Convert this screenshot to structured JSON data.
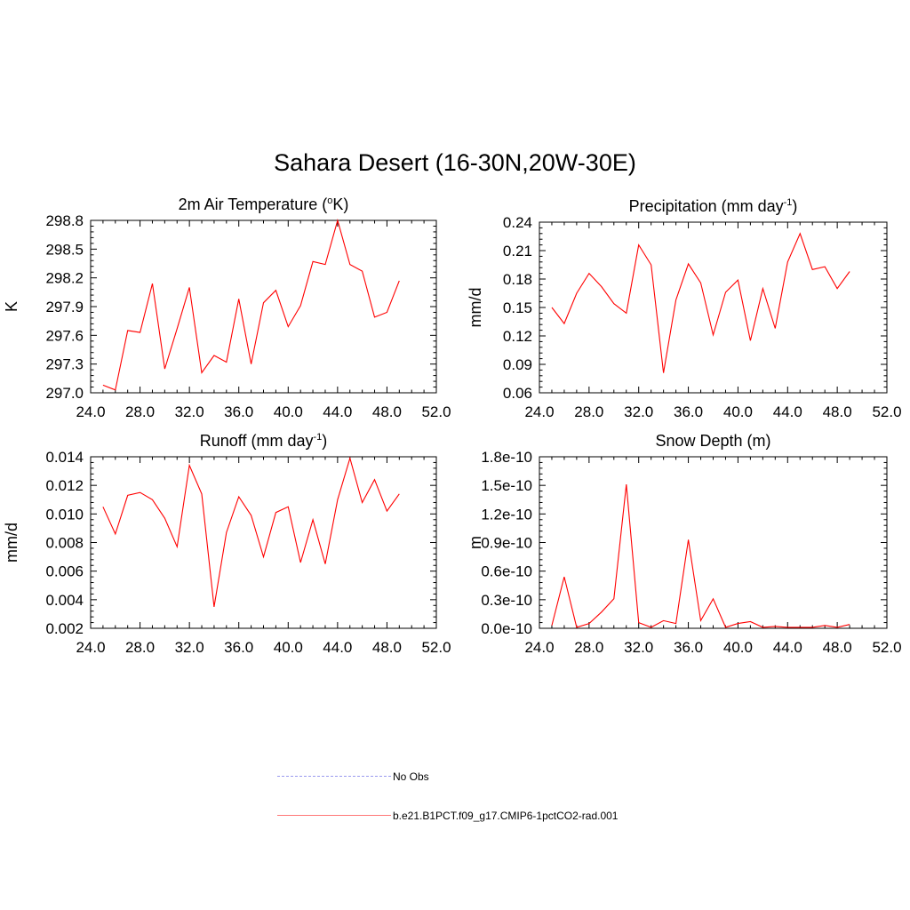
{
  "title": "Sahara Desert (16-30N,20W-30E)",
  "legend": [
    {
      "label": "No Obs",
      "color": "#9999ee",
      "dash": true
    },
    {
      "label": "b.e21.B1PCT.f09_g17.CMIP6-1pctCO2-rad.001",
      "color": "#ff5555",
      "dash": false
    }
  ],
  "chart_data": [
    {
      "type": "line",
      "title": "2m Air Temperature (°K)",
      "title_parts": [
        "2m Air Temperature (",
        "o",
        "K)"
      ],
      "ylabel": "K",
      "xlim": [
        24,
        52
      ],
      "ylim": [
        297.0,
        298.8
      ],
      "xticks": [
        "24.0",
        "28.0",
        "32.0",
        "36.0",
        "40.0",
        "44.0",
        "48.0",
        "52.0"
      ],
      "yticks": [
        "297.0",
        "297.3",
        "297.6",
        "297.9",
        "298.2",
        "298.5",
        "298.8"
      ],
      "series": [
        {
          "color": "#ff0000",
          "x": [
            25,
            26,
            27,
            28,
            29,
            30,
            31,
            32,
            33,
            34,
            35,
            36,
            37,
            38,
            39,
            40,
            41,
            42,
            43,
            44,
            45,
            46,
            47,
            48,
            49
          ],
          "y": [
            297.08,
            297.03,
            297.65,
            297.63,
            298.14,
            297.25,
            297.67,
            298.1,
            297.21,
            297.39,
            297.32,
            297.98,
            297.3,
            297.94,
            298.07,
            297.69,
            297.91,
            298.37,
            298.34,
            298.8,
            298.34,
            298.27,
            297.79,
            297.84,
            298.17
          ]
        }
      ]
    },
    {
      "type": "line",
      "title": "Precipitation (mm day-1)",
      "title_parts": [
        "Precipitation (mm day",
        "-1",
        ")"
      ],
      "ylabel": "mm/d",
      "xlim": [
        24,
        52
      ],
      "ylim": [
        0.06,
        0.24
      ],
      "xticks": [
        "24.0",
        "28.0",
        "32.0",
        "36.0",
        "40.0",
        "44.0",
        "48.0",
        "52.0"
      ],
      "yticks": [
        "0.06",
        "0.09",
        "0.12",
        "0.15",
        "0.18",
        "0.21",
        "0.24"
      ],
      "series": [
        {
          "color": "#ff0000",
          "x": [
            25,
            26,
            27,
            28,
            29,
            30,
            31,
            32,
            33,
            34,
            35,
            36,
            37,
            38,
            39,
            40,
            41,
            42,
            43,
            44,
            45,
            46,
            47,
            48,
            49
          ],
          "y": [
            0.15,
            0.133,
            0.165,
            0.186,
            0.172,
            0.154,
            0.144,
            0.216,
            0.195,
            0.081,
            0.158,
            0.196,
            0.176,
            0.121,
            0.166,
            0.179,
            0.115,
            0.17,
            0.128,
            0.198,
            0.228,
            0.19,
            0.193,
            0.17,
            0.188
          ]
        }
      ]
    },
    {
      "type": "line",
      "title": "Runoff (mm day-1)",
      "title_parts": [
        "Runoff (mm day",
        "-1",
        ")"
      ],
      "ylabel": "mm/d",
      "xlim": [
        24,
        52
      ],
      "ylim": [
        0.002,
        0.014
      ],
      "xticks": [
        "24.0",
        "28.0",
        "32.0",
        "36.0",
        "40.0",
        "44.0",
        "48.0",
        "52.0"
      ],
      "yticks": [
        "0.002",
        "0.004",
        "0.006",
        "0.008",
        "0.010",
        "0.012",
        "0.014"
      ],
      "series": [
        {
          "color": "#ff0000",
          "x": [
            25,
            26,
            27,
            28,
            29,
            30,
            31,
            32,
            33,
            34,
            35,
            36,
            37,
            38,
            39,
            40,
            41,
            42,
            43,
            44,
            45,
            46,
            47,
            48,
            49
          ],
          "y": [
            0.0105,
            0.0086,
            0.0113,
            0.0115,
            0.011,
            0.0097,
            0.0077,
            0.0134,
            0.0114,
            0.0035,
            0.0087,
            0.0112,
            0.0099,
            0.007,
            0.0101,
            0.0105,
            0.0066,
            0.0096,
            0.0065,
            0.011,
            0.0139,
            0.0108,
            0.0124,
            0.0102,
            0.0114
          ]
        }
      ]
    },
    {
      "type": "line",
      "title": "Snow Depth (m)",
      "title_parts": [
        "Snow Depth (m)",
        "",
        ""
      ],
      "ylabel": "m",
      "xlim": [
        24,
        52
      ],
      "ylim": [
        0.0,
        1.8
      ],
      "yscale_note": "values in units of 1e-10",
      "xticks": [
        "24.0",
        "28.0",
        "32.0",
        "36.0",
        "40.0",
        "44.0",
        "48.0",
        "52.0"
      ],
      "yticks": [
        "0.0e-10",
        "0.3e-10",
        "0.6e-10",
        "0.9e-10",
        "1.2e-10",
        "1.5e-10",
        "1.8e-10"
      ],
      "series": [
        {
          "color": "#ff0000",
          "x": [
            25,
            26,
            27,
            28,
            29,
            30,
            31,
            32,
            33,
            34,
            35,
            36,
            37,
            38,
            39,
            40,
            41,
            42,
            43,
            44,
            45,
            46,
            47,
            48,
            49
          ],
          "y": [
            0.03,
            0.54,
            0.01,
            0.05,
            0.17,
            0.31,
            1.51,
            0.06,
            0.01,
            0.08,
            0.05,
            0.93,
            0.08,
            0.31,
            0.01,
            0.05,
            0.07,
            0.01,
            0.02,
            0.01,
            0.01,
            0.01,
            0.03,
            0.01,
            0.04
          ]
        }
      ]
    }
  ]
}
